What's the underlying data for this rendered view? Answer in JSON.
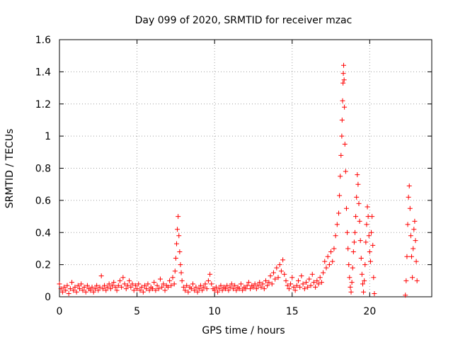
{
  "chart_data": {
    "type": "scatter",
    "title": "Day 099 of 2020, SRMTID for receiver mzac",
    "xlabel": "GPS time / hours",
    "ylabel": "SRMTID / TECUs",
    "xlim": [
      0,
      24
    ],
    "ylim": [
      0,
      1.6
    ],
    "xticks": [
      0,
      5,
      10,
      15,
      20
    ],
    "xtick_labels": [
      "0",
      "5",
      "10",
      "15",
      "20"
    ],
    "yticks": [
      0,
      0.2,
      0.4,
      0.6,
      0.8,
      1,
      1.2,
      1.4,
      1.6
    ],
    "ytick_labels": [
      "0",
      "0.2",
      "0.4",
      "0.6",
      "0.8",
      "1",
      "1.2",
      "1.4",
      "1.6"
    ],
    "grid": true,
    "marker": "+",
    "color": "#ff0000",
    "series": [
      {
        "name": "SRMTID",
        "points": [
          [
            0.0,
            0.08
          ],
          [
            0.1,
            0.05
          ],
          [
            0.2,
            0.03
          ],
          [
            0.3,
            0.06
          ],
          [
            0.4,
            0.04
          ],
          [
            0.5,
            0.07
          ],
          [
            0.6,
            0.02
          ],
          [
            0.7,
            0.05
          ],
          [
            0.8,
            0.09
          ],
          [
            0.9,
            0.04
          ],
          [
            1.0,
            0.06
          ],
          [
            1.1,
            0.03
          ],
          [
            1.2,
            0.07
          ],
          [
            1.3,
            0.05
          ],
          [
            1.4,
            0.08
          ],
          [
            1.5,
            0.04
          ],
          [
            1.6,
            0.06
          ],
          [
            1.7,
            0.03
          ],
          [
            1.8,
            0.07
          ],
          [
            1.9,
            0.05
          ],
          [
            2.0,
            0.04
          ],
          [
            2.1,
            0.06
          ],
          [
            2.2,
            0.03
          ],
          [
            2.3,
            0.05
          ],
          [
            2.4,
            0.07
          ],
          [
            2.5,
            0.04
          ],
          [
            2.6,
            0.06
          ],
          [
            2.7,
            0.13
          ],
          [
            2.8,
            0.05
          ],
          [
            2.9,
            0.07
          ],
          [
            3.0,
            0.04
          ],
          [
            3.1,
            0.06
          ],
          [
            3.2,
            0.08
          ],
          [
            3.3,
            0.05
          ],
          [
            3.4,
            0.07
          ],
          [
            3.5,
            0.09
          ],
          [
            3.6,
            0.06
          ],
          [
            3.7,
            0.04
          ],
          [
            3.8,
            0.07
          ],
          [
            3.9,
            0.1
          ],
          [
            4.0,
            0.06
          ],
          [
            4.1,
            0.12
          ],
          [
            4.2,
            0.08
          ],
          [
            4.3,
            0.05
          ],
          [
            4.4,
            0.07
          ],
          [
            4.5,
            0.1
          ],
          [
            4.6,
            0.06
          ],
          [
            4.7,
            0.08
          ],
          [
            4.8,
            0.04
          ],
          [
            4.9,
            0.07
          ],
          [
            5.0,
            0.05
          ],
          [
            5.1,
            0.08
          ],
          [
            5.2,
            0.04
          ],
          [
            5.3,
            0.06
          ],
          [
            5.4,
            0.03
          ],
          [
            5.5,
            0.07
          ],
          [
            5.6,
            0.05
          ],
          [
            5.7,
            0.08
          ],
          [
            5.8,
            0.04
          ],
          [
            5.9,
            0.06
          ],
          [
            6.0,
            0.05
          ],
          [
            6.1,
            0.09
          ],
          [
            6.2,
            0.04
          ],
          [
            6.3,
            0.07
          ],
          [
            6.4,
            0.05
          ],
          [
            6.5,
            0.11
          ],
          [
            6.6,
            0.06
          ],
          [
            6.7,
            0.08
          ],
          [
            6.8,
            0.04
          ],
          [
            6.9,
            0.07
          ],
          [
            7.0,
            0.06
          ],
          [
            7.1,
            0.1
          ],
          [
            7.2,
            0.07
          ],
          [
            7.3,
            0.12
          ],
          [
            7.4,
            0.08
          ],
          [
            7.45,
            0.16
          ],
          [
            7.5,
            0.24
          ],
          [
            7.55,
            0.33
          ],
          [
            7.6,
            0.42
          ],
          [
            7.65,
            0.5
          ],
          [
            7.7,
            0.38
          ],
          [
            7.75,
            0.28
          ],
          [
            7.8,
            0.2
          ],
          [
            7.85,
            0.15
          ],
          [
            7.9,
            0.1
          ],
          [
            8.0,
            0.06
          ],
          [
            8.1,
            0.04
          ],
          [
            8.2,
            0.07
          ],
          [
            8.3,
            0.03
          ],
          [
            8.4,
            0.06
          ],
          [
            8.5,
            0.05
          ],
          [
            8.6,
            0.08
          ],
          [
            8.7,
            0.04
          ],
          [
            8.8,
            0.06
          ],
          [
            8.9,
            0.03
          ],
          [
            9.0,
            0.05
          ],
          [
            9.1,
            0.07
          ],
          [
            9.2,
            0.04
          ],
          [
            9.3,
            0.06
          ],
          [
            9.4,
            0.08
          ],
          [
            9.5,
            0.05
          ],
          [
            9.6,
            0.1
          ],
          [
            9.7,
            0.14
          ],
          [
            9.8,
            0.08
          ],
          [
            9.9,
            0.05
          ],
          [
            10.0,
            0.04
          ],
          [
            10.1,
            0.06
          ],
          [
            10.2,
            0.03
          ],
          [
            10.3,
            0.05
          ],
          [
            10.4,
            0.07
          ],
          [
            10.5,
            0.04
          ],
          [
            10.6,
            0.06
          ],
          [
            10.7,
            0.05
          ],
          [
            10.8,
            0.07
          ],
          [
            10.9,
            0.04
          ],
          [
            11.0,
            0.06
          ],
          [
            11.1,
            0.08
          ],
          [
            11.2,
            0.05
          ],
          [
            11.3,
            0.07
          ],
          [
            11.4,
            0.04
          ],
          [
            11.5,
            0.06
          ],
          [
            11.6,
            0.05
          ],
          [
            11.7,
            0.08
          ],
          [
            11.8,
            0.04
          ],
          [
            11.9,
            0.06
          ],
          [
            12.0,
            0.05
          ],
          [
            12.1,
            0.07
          ],
          [
            12.2,
            0.09
          ],
          [
            12.3,
            0.05
          ],
          [
            12.4,
            0.07
          ],
          [
            12.5,
            0.06
          ],
          [
            12.6,
            0.08
          ],
          [
            12.7,
            0.05
          ],
          [
            12.8,
            0.07
          ],
          [
            12.9,
            0.09
          ],
          [
            13.0,
            0.06
          ],
          [
            13.1,
            0.08
          ],
          [
            13.2,
            0.05
          ],
          [
            13.3,
            0.1
          ],
          [
            13.4,
            0.07
          ],
          [
            13.5,
            0.09
          ],
          [
            13.6,
            0.13
          ],
          [
            13.7,
            0.08
          ],
          [
            13.8,
            0.15
          ],
          [
            13.9,
            0.11
          ],
          [
            14.0,
            0.18
          ],
          [
            14.1,
            0.12
          ],
          [
            14.2,
            0.2
          ],
          [
            14.3,
            0.16
          ],
          [
            14.4,
            0.23
          ],
          [
            14.5,
            0.14
          ],
          [
            14.6,
            0.1
          ],
          [
            14.7,
            0.07
          ],
          [
            14.8,
            0.05
          ],
          [
            14.9,
            0.08
          ],
          [
            15.0,
            0.12
          ],
          [
            15.1,
            0.06
          ],
          [
            15.2,
            0.04
          ],
          [
            15.3,
            0.07
          ],
          [
            15.4,
            0.1
          ],
          [
            15.5,
            0.06
          ],
          [
            15.6,
            0.13
          ],
          [
            15.7,
            0.08
          ],
          [
            15.8,
            0.05
          ],
          [
            15.9,
            0.09
          ],
          [
            16.0,
            0.06
          ],
          [
            16.1,
            0.11
          ],
          [
            16.2,
            0.07
          ],
          [
            16.3,
            0.14
          ],
          [
            16.4,
            0.09
          ],
          [
            16.5,
            0.06
          ],
          [
            16.6,
            0.1
          ],
          [
            16.7,
            0.08
          ],
          [
            16.8,
            0.12
          ],
          [
            16.9,
            0.09
          ],
          [
            17.0,
            0.15
          ],
          [
            17.1,
            0.22
          ],
          [
            17.2,
            0.18
          ],
          [
            17.3,
            0.25
          ],
          [
            17.4,
            0.2
          ],
          [
            17.5,
            0.28
          ],
          [
            17.6,
            0.22
          ],
          [
            17.7,
            0.3
          ],
          [
            17.8,
            0.38
          ],
          [
            17.9,
            0.45
          ],
          [
            18.0,
            0.52
          ],
          [
            18.05,
            0.63
          ],
          [
            18.1,
            0.75
          ],
          [
            18.15,
            0.88
          ],
          [
            18.2,
            1.0
          ],
          [
            18.22,
            1.1
          ],
          [
            18.25,
            1.22
          ],
          [
            18.28,
            1.33
          ],
          [
            18.3,
            1.39
          ],
          [
            18.32,
            1.44
          ],
          [
            18.35,
            1.35
          ],
          [
            18.37,
            1.18
          ],
          [
            18.4,
            0.95
          ],
          [
            18.45,
            0.78
          ],
          [
            18.5,
            0.55
          ],
          [
            18.55,
            0.4
          ],
          [
            18.6,
            0.3
          ],
          [
            18.65,
            0.2
          ],
          [
            18.7,
            0.12
          ],
          [
            18.75,
            0.06
          ],
          [
            18.8,
            0.03
          ],
          [
            18.85,
            0.09
          ],
          [
            18.9,
            0.18
          ],
          [
            18.95,
            0.28
          ],
          [
            19.0,
            0.34
          ],
          [
            19.05,
            0.4
          ],
          [
            19.1,
            0.5
          ],
          [
            19.15,
            0.62
          ],
          [
            19.2,
            0.76
          ],
          [
            19.25,
            0.7
          ],
          [
            19.3,
            0.58
          ],
          [
            19.35,
            0.47
          ],
          [
            19.4,
            0.35
          ],
          [
            19.45,
            0.24
          ],
          [
            19.5,
            0.14
          ],
          [
            19.55,
            0.08
          ],
          [
            19.6,
            0.03
          ],
          [
            19.65,
            0.1
          ],
          [
            19.7,
            0.2
          ],
          [
            19.75,
            0.34
          ],
          [
            19.8,
            0.45
          ],
          [
            19.85,
            0.56
          ],
          [
            19.9,
            0.5
          ],
          [
            19.95,
            0.38
          ],
          [
            20.0,
            0.28
          ],
          [
            20.05,
            0.22
          ],
          [
            20.1,
            0.4
          ],
          [
            20.15,
            0.5
          ],
          [
            20.2,
            0.32
          ],
          [
            20.25,
            0.12
          ],
          [
            20.3,
            0.02
          ],
          [
            22.3,
            0.01
          ],
          [
            22.35,
            0.1
          ],
          [
            22.4,
            0.25
          ],
          [
            22.45,
            0.45
          ],
          [
            22.5,
            0.62
          ],
          [
            22.55,
            0.69
          ],
          [
            22.6,
            0.55
          ],
          [
            22.65,
            0.38
          ],
          [
            22.7,
            0.25
          ],
          [
            22.75,
            0.12
          ],
          [
            22.8,
            0.3
          ],
          [
            22.85,
            0.42
          ],
          [
            22.9,
            0.47
          ],
          [
            22.95,
            0.35
          ],
          [
            23.0,
            0.22
          ],
          [
            23.05,
            0.1
          ]
        ]
      }
    ]
  }
}
